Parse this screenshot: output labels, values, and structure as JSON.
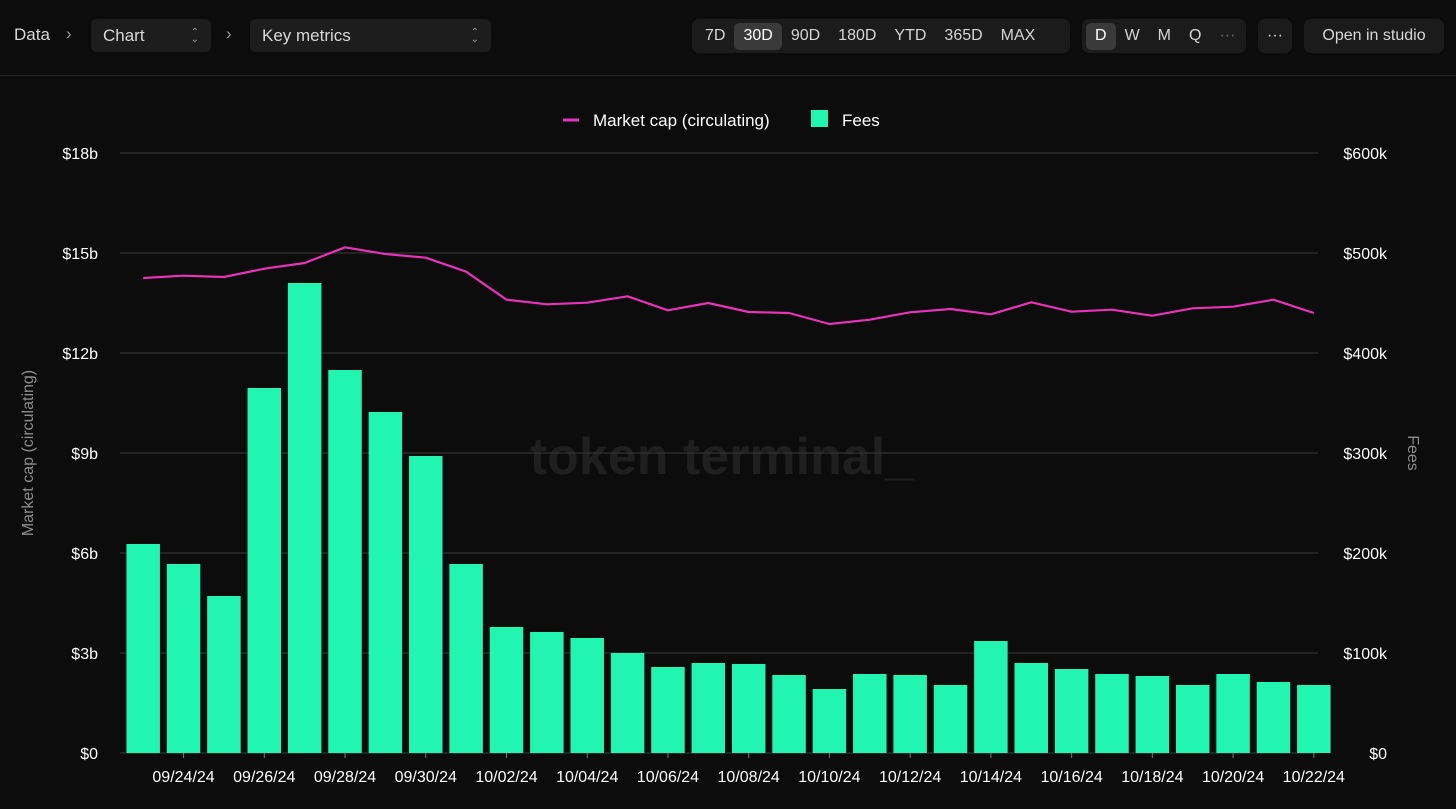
{
  "breadcrumb": {
    "root": "Data",
    "chart_select": "Chart",
    "metrics_select": "Key metrics"
  },
  "range_options": [
    {
      "label": "7D",
      "active": false
    },
    {
      "label": "30D",
      "active": true
    },
    {
      "label": "90D",
      "active": false
    },
    {
      "label": "180D",
      "active": false
    },
    {
      "label": "YTD",
      "active": false
    },
    {
      "label": "365D",
      "active": false
    },
    {
      "label": "MAX",
      "active": false
    }
  ],
  "granularity_options": [
    {
      "label": "D",
      "active": true
    },
    {
      "label": "W",
      "active": false
    },
    {
      "label": "M",
      "active": false
    },
    {
      "label": "Q",
      "active": false
    },
    {
      "label": "···",
      "active": false
    }
  ],
  "toolbar": {
    "more_label": "···",
    "open_studio_label": "Open in studio"
  },
  "watermark": "token terminal_",
  "colors": {
    "market_cap": "#e633b8",
    "fees": "#22f5b0",
    "background": "#0c0c0c",
    "grid": "#3a3a3a"
  },
  "chart_data": {
    "type": "bar",
    "title": "",
    "legend": [
      "Market cap (circulating)",
      "Fees"
    ],
    "legend_position": "top-center",
    "grid": true,
    "ylabel_left": "Market cap (circulating)",
    "ylabel_right": "Fees",
    "ylim_left": [
      0,
      18000000000
    ],
    "ylim_right": [
      0,
      600000
    ],
    "y_ticks_left": [
      "$0",
      "$3b",
      "$6b",
      "$9b",
      "$12b",
      "$15b",
      "$18b"
    ],
    "y_ticks_right": [
      "$0",
      "$100k",
      "$200k",
      "$300k",
      "$400k",
      "$500k",
      "$600k"
    ],
    "categories": [
      "09/23/24",
      "09/24/24",
      "09/25/24",
      "09/26/24",
      "09/27/24",
      "09/28/24",
      "09/29/24",
      "09/30/24",
      "10/01/24",
      "10/02/24",
      "10/03/24",
      "10/04/24",
      "10/05/24",
      "10/06/24",
      "10/07/24",
      "10/08/24",
      "10/09/24",
      "10/10/24",
      "10/11/24",
      "10/12/24",
      "10/13/24",
      "10/14/24",
      "10/15/24",
      "10/16/24",
      "10/17/24",
      "10/18/24",
      "10/19/24",
      "10/20/24",
      "10/21/24",
      "10/22/24"
    ],
    "x_tick_labels": [
      "09/24/24",
      "09/26/24",
      "09/28/24",
      "09/30/24",
      "10/02/24",
      "10/04/24",
      "10/06/24",
      "10/08/24",
      "10/10/24",
      "10/12/24",
      "10/14/24",
      "10/16/24",
      "10/18/24",
      "10/20/24",
      "10/22/24"
    ],
    "series": [
      {
        "name": "Fees",
        "kind": "bar",
        "axis": "right",
        "values": [
          209000,
          189000,
          157000,
          365000,
          470000,
          383000,
          341000,
          297000,
          189000,
          126000,
          121000,
          115000,
          100000,
          86000,
          90000,
          89000,
          78000,
          64000,
          79000,
          78000,
          68000,
          112000,
          90000,
          84000,
          79000,
          77000,
          68000,
          79000,
          71000,
          68000
        ]
      },
      {
        "name": "Market cap (circulating)",
        "kind": "line",
        "axis": "left",
        "values": [
          14250000000,
          14320000000,
          14280000000,
          14530000000,
          14700000000,
          15170000000,
          14970000000,
          14860000000,
          14440000000,
          13600000000,
          13460000000,
          13510000000,
          13700000000,
          13280000000,
          13500000000,
          13230000000,
          13200000000,
          12870000000,
          13000000000,
          13220000000,
          13320000000,
          13160000000,
          13520000000,
          13240000000,
          13300000000,
          13120000000,
          13340000000,
          13390000000,
          13600000000,
          13200000000
        ]
      }
    ]
  }
}
